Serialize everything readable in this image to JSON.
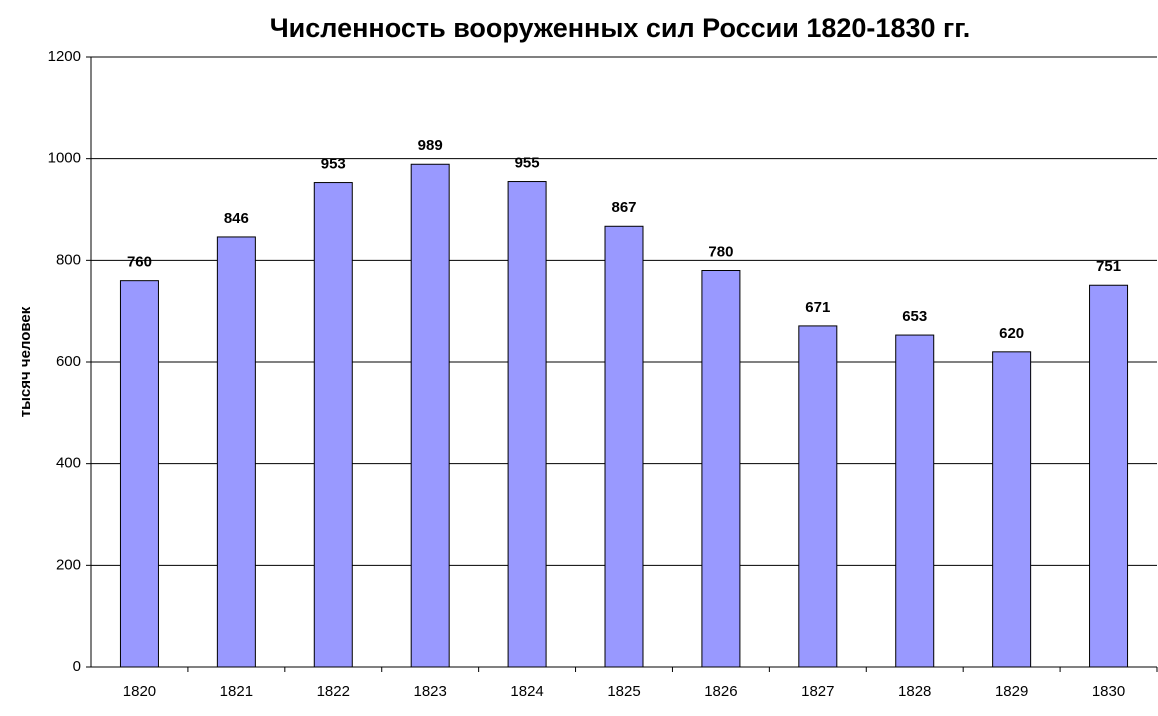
{
  "chart_data": {
    "type": "bar",
    "title": "Численность вооруженных сил России 1820-1830 гг.",
    "y_label": "тысяч человек",
    "categories": [
      "1820",
      "1821",
      "1822",
      "1823",
      "1824",
      "1825",
      "1826",
      "1827",
      "1828",
      "1829",
      "1830"
    ],
    "values": [
      760,
      846,
      953,
      989,
      955,
      867,
      780,
      671,
      653,
      620,
      751
    ],
    "color": "#9999ff",
    "ylim": [
      0,
      1200
    ],
    "yticks": [
      0,
      200,
      400,
      600,
      800,
      1000,
      1200
    ],
    "grid": true
  }
}
